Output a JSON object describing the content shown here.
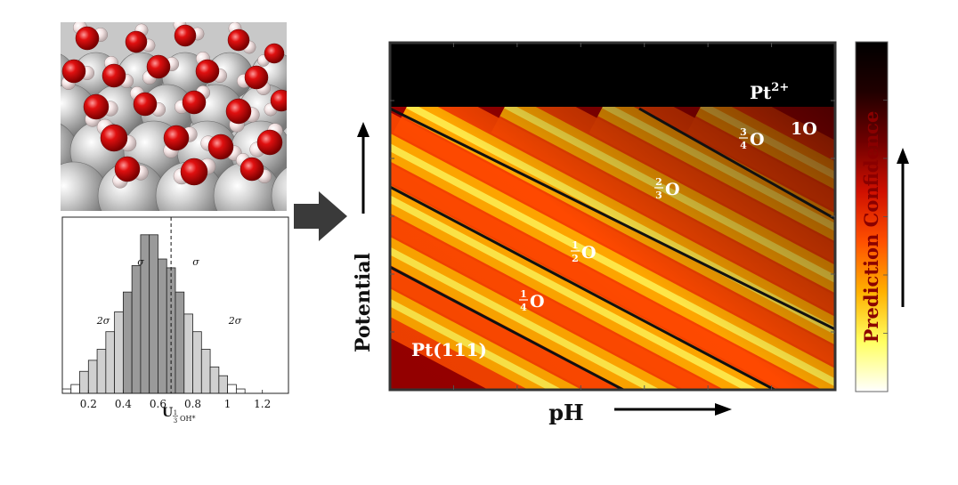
{
  "molecule_panel": {
    "description_icon": "pt-surface-water-molecules"
  },
  "histogram": {
    "bin_start": 0.05,
    "bin_width": 0.05,
    "counts": [
      2,
      4,
      10,
      15,
      20,
      28,
      37,
      46,
      58,
      72,
      72,
      61,
      57,
      46,
      36,
      28,
      20,
      12,
      8,
      4,
      2
    ],
    "bin_tone": [
      "w",
      "w",
      "l",
      "l",
      "l",
      "l",
      "l",
      "d",
      "d",
      "d",
      "d",
      "d",
      "d",
      "d",
      "l",
      "l",
      "l",
      "l",
      "l",
      "w",
      "w"
    ],
    "x_ticks": [
      "0.2",
      "0.4",
      "0.6",
      "0.8",
      "1",
      "1.2"
    ],
    "x_tick_values": [
      0.2,
      0.4,
      0.6,
      0.8,
      1.0,
      1.2
    ],
    "xlim": [
      0.05,
      1.35
    ],
    "mean": 0.675,
    "xlabel": {
      "base": "U",
      "sub_num": "1",
      "sub_den": "3",
      "sub_rest": "OH*"
    },
    "sigma_labels": [
      "σ",
      "σ",
      "2σ",
      "2σ"
    ]
  },
  "phase_diagram": {
    "xlabel": "pH",
    "ylabel": "Potential",
    "regions": {
      "top": {
        "text": "Pt",
        "sup": "2+"
      },
      "pt111": "Pt(111)",
      "quarter": {
        "num": "1",
        "den": "4",
        "text": "O"
      },
      "half": {
        "num": "1",
        "den": "2",
        "text": "O"
      },
      "two_thirds": {
        "num": "2",
        "den": "3",
        "text": "O"
      },
      "three_quarters": {
        "num": "3",
        "den": "4",
        "text": "O"
      },
      "full": "1O"
    }
  },
  "colorbar": {
    "label": "Prediction Confidence",
    "colors": [
      "#ffffff",
      "#ffff60",
      "#ffb000",
      "#ff5000",
      "#d01000",
      "#700000",
      "#200000",
      "#000000"
    ]
  }
}
